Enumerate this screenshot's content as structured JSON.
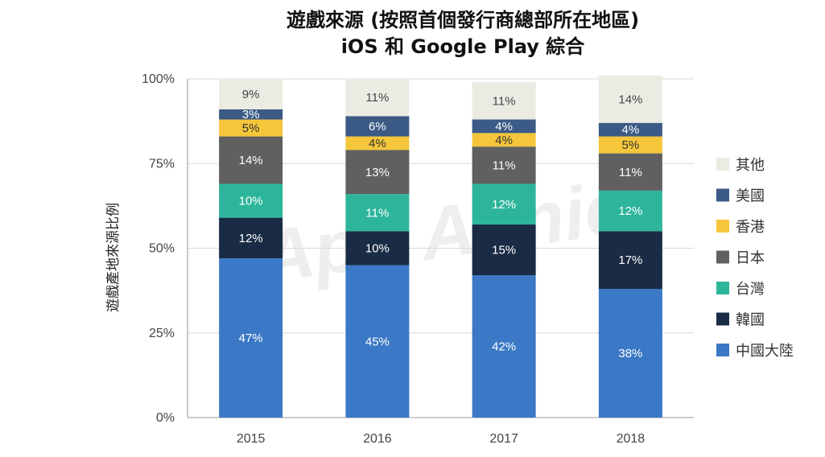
{
  "watermark": "App Annie",
  "chart_data": {
    "type": "bar",
    "stacked": true,
    "title": "遊戲來源 (按照首個發行商總部所在地區)",
    "subtitle": "iOS 和 Google Play 綜合",
    "ylabel": "遊戲產地來源比例",
    "xlabel": "",
    "ylim": [
      0,
      100
    ],
    "yticks": [
      "0%",
      "25%",
      "50%",
      "75%",
      "100%"
    ],
    "grid": true,
    "legend_position": "right",
    "categories": [
      "2015",
      "2016",
      "2017",
      "2018"
    ],
    "series": [
      {
        "name": "中國大陸",
        "color": "#3b78c5",
        "text_color": "#ffffff",
        "values": [
          47,
          45,
          42,
          38
        ],
        "labels": [
          "47%",
          "45%",
          "42%",
          "38%"
        ]
      },
      {
        "name": "韓國",
        "color": "#1a2b45",
        "text_color": "#ffffff",
        "values": [
          12,
          10,
          15,
          17
        ],
        "labels": [
          "12%",
          "10%",
          "15%",
          "17%"
        ]
      },
      {
        "name": "台灣",
        "color": "#2db59b",
        "text_color": "#ffffff",
        "values": [
          10,
          11,
          12,
          12
        ],
        "labels": [
          "10%",
          "11%",
          "12%",
          "12%"
        ]
      },
      {
        "name": "日本",
        "color": "#606060",
        "text_color": "#ffffff",
        "values": [
          14,
          13,
          11,
          11
        ],
        "labels": [
          "14%",
          "13%",
          "11%",
          "11%"
        ]
      },
      {
        "name": "香港",
        "color": "#f5c63a",
        "text_color": "#333333",
        "values": [
          5,
          4,
          4,
          5
        ],
        "labels": [
          "5%",
          "4%",
          "4%",
          "5%"
        ]
      },
      {
        "name": "美國",
        "color": "#3b5a85",
        "text_color": "#ffffff",
        "values": [
          3,
          6,
          4,
          4
        ],
        "labels": [
          "3%",
          "6%",
          "4%",
          "4%"
        ]
      },
      {
        "name": "其他",
        "color": "#ecebe3",
        "text_color": "#444444",
        "values": [
          9,
          11,
          11,
          14
        ],
        "labels": [
          "9%",
          "11%",
          "11%",
          "14%"
        ]
      }
    ]
  }
}
